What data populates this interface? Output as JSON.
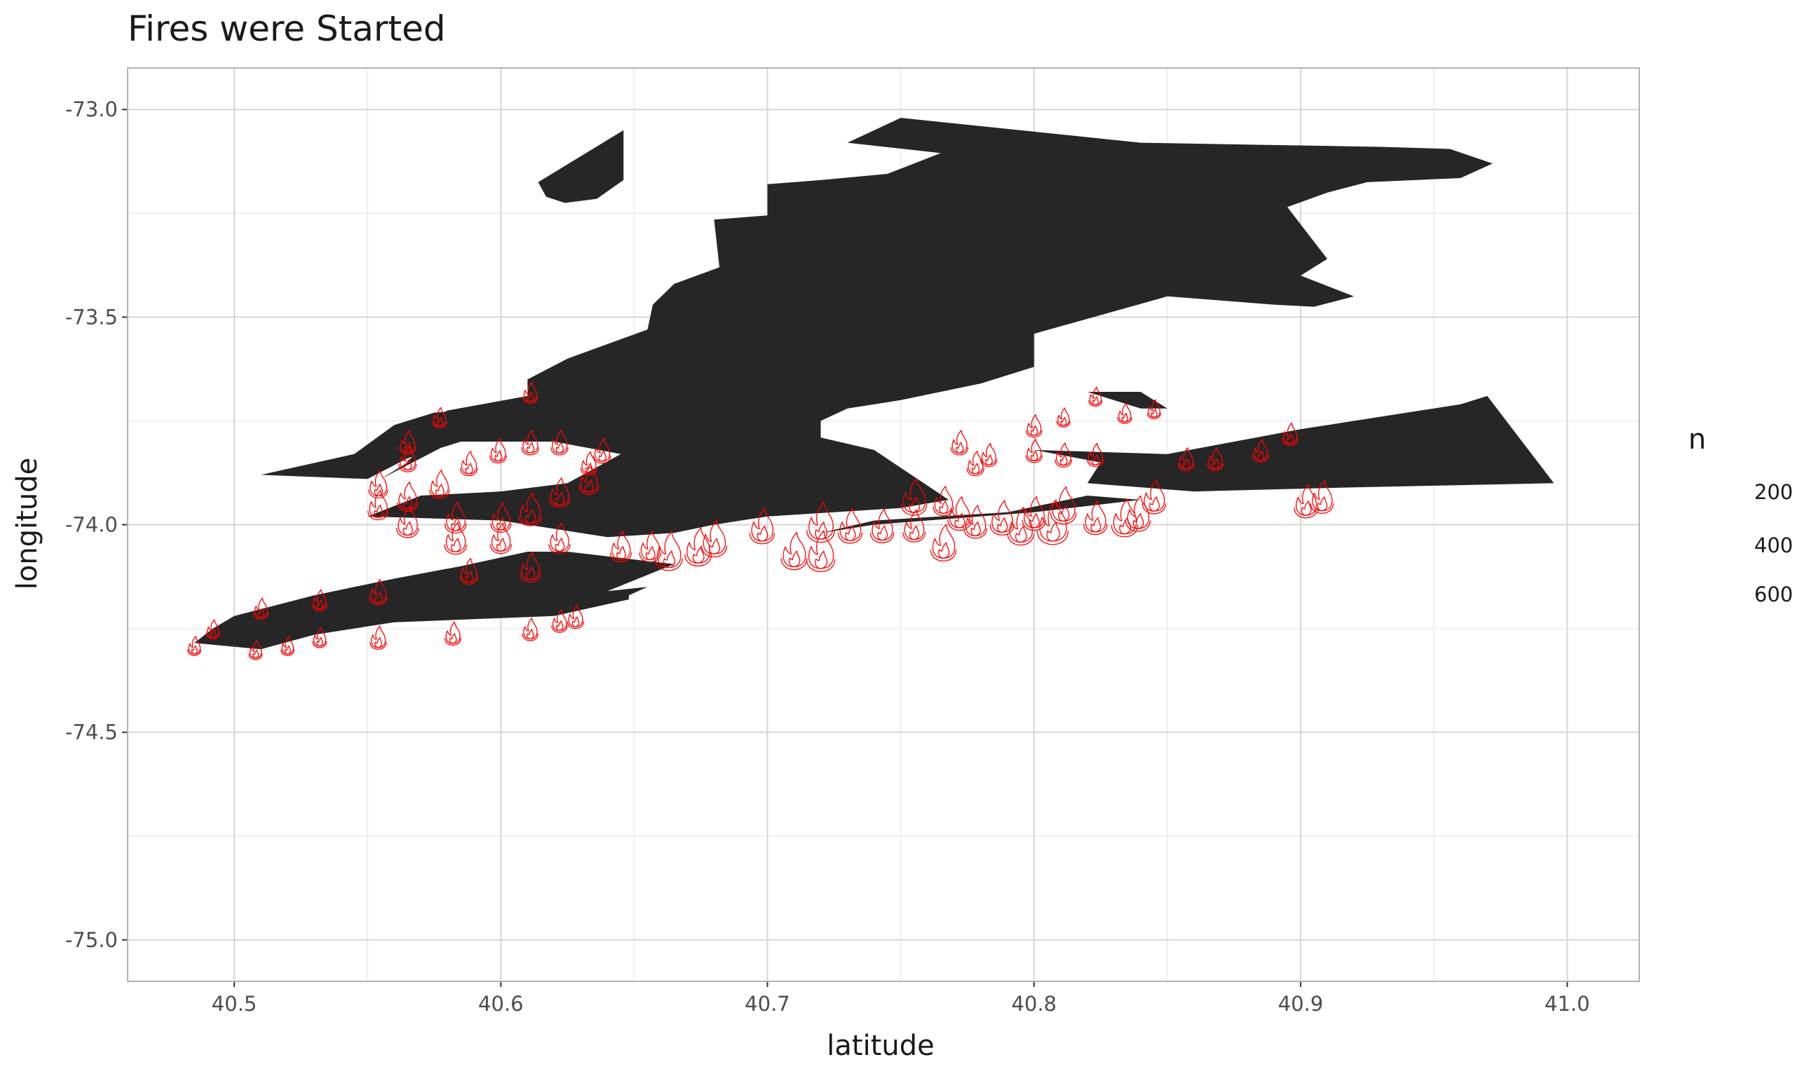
{
  "chart_data": {
    "type": "scatter",
    "title": "Fires were Started",
    "xlabel": "latitude",
    "ylabel": "longitude",
    "xlim": [
      40.46,
      41.027
    ],
    "ylim": [
      -75.1,
      -72.9
    ],
    "x_ticks": [
      "40.5",
      "40.6",
      "40.7",
      "40.8",
      "40.9",
      "41.0"
    ],
    "x_tick_values": [
      40.5,
      40.6,
      40.7,
      40.8,
      40.9,
      41.0
    ],
    "y_ticks": [
      "-73.0",
      "-73.5",
      "-74.0",
      "-74.5",
      "-75.0"
    ],
    "y_tick_values": [
      -73.0,
      -73.5,
      -74.0,
      -74.5,
      -75.0
    ],
    "grid": true,
    "legend": {
      "title": "n",
      "position": "right",
      "entries": [
        "200",
        "400",
        "600"
      ],
      "entry_values": [
        200,
        400,
        600
      ]
    },
    "marker": "fire-icon",
    "marker_color": "#ff0000",
    "land_color": "#262626",
    "land_polygons": [
      [
        [
          40.485,
          -74.285
        ],
        [
          40.492,
          -74.25
        ],
        [
          40.5,
          -74.22
        ],
        [
          40.53,
          -74.17
        ],
        [
          40.56,
          -74.13
        ],
        [
          40.585,
          -74.1
        ],
        [
          40.61,
          -74.065
        ],
        [
          40.625,
          -74.065
        ],
        [
          40.665,
          -74.095
        ],
        [
          40.64,
          -74.16
        ],
        [
          40.655,
          -74.15
        ],
        [
          40.648,
          -74.17
        ],
        [
          40.648,
          -74.18
        ],
        [
          40.62,
          -74.22
        ],
        [
          40.6,
          -74.225
        ],
        [
          40.56,
          -74.235
        ],
        [
          40.53,
          -74.265
        ],
        [
          40.51,
          -74.3
        ]
      ],
      [
        [
          40.614,
          -73.175
        ],
        [
          40.646,
          -73.05
        ],
        [
          40.646,
          -73.17
        ],
        [
          40.636,
          -73.215
        ],
        [
          40.624,
          -73.225
        ],
        [
          40.617,
          -73.21
        ]
      ],
      [
        [
          40.555,
          -73.89
        ],
        [
          40.565,
          -73.85
        ],
        [
          40.57,
          -73.81
        ],
        [
          40.565,
          -73.77
        ],
        [
          40.58,
          -73.725
        ],
        [
          40.61,
          -73.69
        ],
        [
          40.61,
          -73.65
        ],
        [
          40.625,
          -73.6
        ],
        [
          40.655,
          -73.53
        ],
        [
          40.657,
          -73.47
        ],
        [
          40.665,
          -73.42
        ],
        [
          40.682,
          -73.38
        ],
        [
          40.68,
          -73.265
        ],
        [
          40.7,
          -73.255
        ],
        [
          40.7,
          -73.18
        ],
        [
          40.72,
          -73.17
        ],
        [
          40.745,
          -73.155
        ],
        [
          40.765,
          -73.105
        ],
        [
          40.73,
          -73.08
        ],
        [
          40.75,
          -73.02
        ],
        [
          40.84,
          -73.08
        ],
        [
          40.93,
          -73.09
        ],
        [
          40.956,
          -73.095
        ],
        [
          40.972,
          -73.13
        ],
        [
          40.96,
          -73.165
        ],
        [
          40.925,
          -73.175
        ],
        [
          40.91,
          -73.2
        ],
        [
          40.895,
          -73.235
        ],
        [
          40.91,
          -73.36
        ],
        [
          40.9,
          -73.4
        ],
        [
          40.92,
          -73.45
        ],
        [
          40.905,
          -73.475
        ],
        [
          40.89,
          -73.47
        ],
        [
          40.85,
          -73.45
        ],
        [
          40.8,
          -73.54
        ],
        [
          40.8,
          -73.62
        ],
        [
          40.78,
          -73.66
        ],
        [
          40.75,
          -73.7
        ],
        [
          40.73,
          -73.72
        ],
        [
          40.72,
          -73.75
        ],
        [
          40.72,
          -73.79
        ],
        [
          40.74,
          -73.82
        ],
        [
          40.768,
          -73.94
        ],
        [
          40.75,
          -73.96
        ],
        [
          40.7,
          -73.98
        ],
        [
          40.68,
          -74.0
        ],
        [
          40.665,
          -74.02
        ],
        [
          40.64,
          -74.03
        ],
        [
          40.62,
          -74.01
        ],
        [
          40.6,
          -73.99
        ],
        [
          40.575,
          -73.985
        ],
        [
          40.55,
          -73.98
        ],
        [
          40.57,
          -73.93
        ],
        [
          40.6,
          -73.92
        ],
        [
          40.625,
          -73.9
        ],
        [
          40.645,
          -73.83
        ],
        [
          40.62,
          -73.8
        ],
        [
          40.585,
          -73.8
        ],
        [
          40.565,
          -73.84
        ],
        [
          40.55,
          -73.89
        ],
        [
          40.51,
          -73.88
        ],
        [
          40.545,
          -73.83
        ],
        [
          40.56,
          -73.76
        ],
        [
          40.575,
          -73.73
        ],
        [
          40.6,
          -73.72
        ],
        [
          40.615,
          -73.69
        ]
      ],
      [
        [
          40.71,
          -74.03
        ],
        [
          40.74,
          -74.0
        ],
        [
          40.8,
          -73.97
        ],
        [
          40.84,
          -73.94
        ],
        [
          40.82,
          -73.93
        ],
        [
          40.79,
          -73.97
        ],
        [
          40.74,
          -73.99
        ],
        [
          40.72,
          -74.02
        ]
      ],
      [
        [
          40.8,
          -73.82
        ],
        [
          40.85,
          -73.83
        ],
        [
          40.9,
          -73.77
        ],
        [
          40.96,
          -73.71
        ],
        [
          40.97,
          -73.69
        ],
        [
          40.995,
          -73.9
        ],
        [
          40.92,
          -73.91
        ],
        [
          40.86,
          -73.92
        ],
        [
          40.82,
          -73.9
        ],
        [
          40.825,
          -73.85
        ]
      ],
      [
        [
          40.82,
          -73.68
        ],
        [
          40.84,
          -73.68
        ],
        [
          40.85,
          -73.72
        ],
        [
          40.84,
          -73.72
        ]
      ]
    ],
    "series": [
      {
        "points": [
          {
            "x": 40.485,
            "y": -74.29,
            "n": 40
          },
          {
            "x": 40.492,
            "y": -74.25,
            "n": 40
          },
          {
            "x": 40.508,
            "y": -74.3,
            "n": 40
          },
          {
            "x": 40.51,
            "y": -74.2,
            "n": 60
          },
          {
            "x": 40.52,
            "y": -74.29,
            "n": 40
          },
          {
            "x": 40.532,
            "y": -74.27,
            "n": 50
          },
          {
            "x": 40.532,
            "y": -74.18,
            "n": 60
          },
          {
            "x": 40.554,
            "y": -74.27,
            "n": 90
          },
          {
            "x": 40.554,
            "y": -74.16,
            "n": 120
          },
          {
            "x": 40.554,
            "y": -73.95,
            "n": 200
          },
          {
            "x": 40.554,
            "y": -73.9,
            "n": 160
          },
          {
            "x": 40.565,
            "y": -73.99,
            "n": 250
          },
          {
            "x": 40.565,
            "y": -73.93,
            "n": 200
          },
          {
            "x": 40.565,
            "y": -73.84,
            "n": 120
          },
          {
            "x": 40.565,
            "y": -73.8,
            "n": 90
          },
          {
            "x": 40.577,
            "y": -73.9,
            "n": 180
          },
          {
            "x": 40.577,
            "y": -73.74,
            "n": 50
          },
          {
            "x": 40.582,
            "y": -74.26,
            "n": 90
          },
          {
            "x": 40.583,
            "y": -74.03,
            "n": 250
          },
          {
            "x": 40.583,
            "y": -73.98,
            "n": 230
          },
          {
            "x": 40.588,
            "y": -74.11,
            "n": 130
          },
          {
            "x": 40.588,
            "y": -73.85,
            "n": 110
          },
          {
            "x": 40.599,
            "y": -73.82,
            "n": 100
          },
          {
            "x": 40.6,
            "y": -73.98,
            "n": 200
          },
          {
            "x": 40.611,
            "y": -74.25,
            "n": 80
          },
          {
            "x": 40.611,
            "y": -74.1,
            "n": 200
          },
          {
            "x": 40.611,
            "y": -73.96,
            "n": 280
          },
          {
            "x": 40.611,
            "y": -73.8,
            "n": 110
          },
          {
            "x": 40.611,
            "y": -73.68,
            "n": 60
          },
          {
            "x": 40.622,
            "y": -74.23,
            "n": 80
          },
          {
            "x": 40.622,
            "y": -73.92,
            "n": 200
          },
          {
            "x": 40.622,
            "y": -73.8,
            "n": 110
          },
          {
            "x": 40.628,
            "y": -74.22,
            "n": 90
          },
          {
            "x": 40.633,
            "y": -73.89,
            "n": 180
          },
          {
            "x": 40.633,
            "y": -73.85,
            "n": 90
          },
          {
            "x": 40.638,
            "y": -73.82,
            "n": 110
          },
          {
            "x": 40.622,
            "y": -74.03,
            "n": 220
          },
          {
            "x": 40.6,
            "y": -74.03,
            "n": 220
          },
          {
            "x": 40.645,
            "y": -74.05,
            "n": 220
          },
          {
            "x": 40.656,
            "y": -74.05,
            "n": 230
          },
          {
            "x": 40.663,
            "y": -74.06,
            "n": 450
          },
          {
            "x": 40.674,
            "y": -74.05,
            "n": 430
          },
          {
            "x": 40.68,
            "y": -74.03,
            "n": 380
          },
          {
            "x": 40.698,
            "y": -74.0,
            "n": 350
          },
          {
            "x": 40.71,
            "y": -74.06,
            "n": 400
          },
          {
            "x": 40.72,
            "y": -74.06,
            "n": 520
          },
          {
            "x": 40.72,
            "y": -73.99,
            "n": 500
          },
          {
            "x": 40.731,
            "y": -74.0,
            "n": 320
          },
          {
            "x": 40.743,
            "y": -74.0,
            "n": 300
          },
          {
            "x": 40.755,
            "y": -73.93,
            "n": 380
          },
          {
            "x": 40.755,
            "y": -74.0,
            "n": 260
          },
          {
            "x": 40.766,
            "y": -74.04,
            "n": 380
          },
          {
            "x": 40.766,
            "y": -73.94,
            "n": 200
          },
          {
            "x": 40.772,
            "y": -73.8,
            "n": 110
          },
          {
            "x": 40.772,
            "y": -73.97,
            "n": 300
          },
          {
            "x": 40.778,
            "y": -73.99,
            "n": 280
          },
          {
            "x": 40.778,
            "y": -73.85,
            "n": 110
          },
          {
            "x": 40.783,
            "y": -73.83,
            "n": 90
          },
          {
            "x": 40.788,
            "y": -73.98,
            "n": 320
          },
          {
            "x": 40.795,
            "y": -74.0,
            "n": 420
          },
          {
            "x": 40.8,
            "y": -73.82,
            "n": 90
          },
          {
            "x": 40.8,
            "y": -73.76,
            "n": 80
          },
          {
            "x": 40.8,
            "y": -73.97,
            "n": 300
          },
          {
            "x": 40.807,
            "y": -73.99,
            "n": 650
          },
          {
            "x": 40.811,
            "y": -73.95,
            "n": 400
          },
          {
            "x": 40.811,
            "y": -73.83,
            "n": 100
          },
          {
            "x": 40.811,
            "y": -73.74,
            "n": 40
          },
          {
            "x": 40.823,
            "y": -73.98,
            "n": 300
          },
          {
            "x": 40.823,
            "y": -73.83,
            "n": 90
          },
          {
            "x": 40.823,
            "y": -73.69,
            "n": 40
          },
          {
            "x": 40.834,
            "y": -73.98,
            "n": 420
          },
          {
            "x": 40.834,
            "y": -73.73,
            "n": 50
          },
          {
            "x": 40.839,
            "y": -73.97,
            "n": 350
          },
          {
            "x": 40.845,
            "y": -73.93,
            "n": 300
          },
          {
            "x": 40.845,
            "y": -73.72,
            "n": 40
          },
          {
            "x": 40.857,
            "y": -73.84,
            "n": 80
          },
          {
            "x": 40.868,
            "y": -73.84,
            "n": 80
          },
          {
            "x": 40.885,
            "y": -73.82,
            "n": 80
          },
          {
            "x": 40.896,
            "y": -73.78,
            "n": 80
          },
          {
            "x": 40.902,
            "y": -73.94,
            "n": 300
          },
          {
            "x": 40.908,
            "y": -73.93,
            "n": 280
          }
        ]
      }
    ]
  }
}
